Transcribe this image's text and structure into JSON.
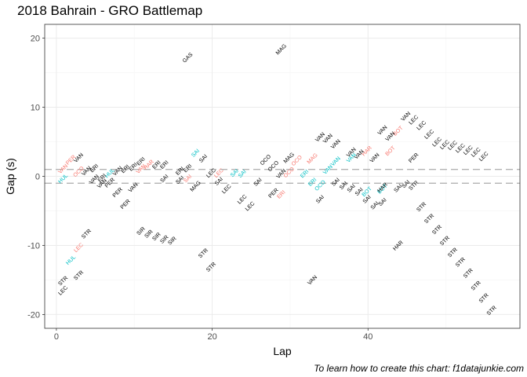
{
  "title": "2018 Bahrain - GRO Battlemap",
  "caption": "To learn how to create this chart: f1datajunkie.com",
  "colors": {
    "ahead": "#F8766D",
    "behind": "#00BFC4",
    "other": "#000000",
    "ref_line": "#b3b3b3",
    "grid_major": "#ebebeb",
    "grid_minor": "#f5f5f5",
    "panel_border": "#333333"
  },
  "chart_data": {
    "type": "scatter",
    "title": "2018 Bahrain - GRO Battlemap",
    "xlabel": "Lap",
    "ylabel": "Gap (s)",
    "xlim": [
      -1.5,
      59.5
    ],
    "ylim": [
      -22,
      22
    ],
    "x_ticks": [
      0,
      20,
      40
    ],
    "y_ticks": [
      -20,
      -10,
      0,
      10,
      20
    ],
    "reference_lines": [
      1,
      -1
    ],
    "grid": true,
    "legend": "none",
    "series": [
      {
        "role": "ahead",
        "points": [
          {
            "lap": 1,
            "gap": 0.9,
            "label": "VAN"
          },
          {
            "lap": 2,
            "gap": 2.2,
            "label": "PER"
          },
          {
            "lap": 3,
            "gap": 0.5,
            "label": "OCO"
          },
          {
            "lap": 11,
            "gap": 0.9,
            "label": "VAN"
          },
          {
            "lap": 12,
            "gap": 1.5,
            "label": "HAR"
          },
          {
            "lap": 17,
            "gap": -0.5,
            "label": "SAI"
          },
          {
            "lap": 21,
            "gap": 0.3,
            "label": "LEC"
          },
          {
            "lap": 29,
            "gap": -2.8,
            "label": "ERI"
          },
          {
            "lap": 30,
            "gap": 0.4,
            "label": "OCO"
          },
          {
            "lap": 31,
            "gap": 2.1,
            "label": "OCO"
          },
          {
            "lap": 33,
            "gap": 2.4,
            "label": "MAG"
          },
          {
            "lap": 40,
            "gap": 3.5,
            "label": "HAR"
          },
          {
            "lap": 43,
            "gap": 3.5,
            "label": "BOT"
          },
          {
            "lap": 44,
            "gap": 6.4,
            "label": "BOT"
          },
          {
            "lap": 3,
            "gap": -10.5,
            "label": "LEC"
          }
        ]
      },
      {
        "role": "behind",
        "points": [
          {
            "lap": 1,
            "gap": -0.5,
            "label": "HUL"
          },
          {
            "lap": 7,
            "gap": 0.3,
            "label": "HUL"
          },
          {
            "lap": 18,
            "gap": 3.2,
            "label": "SAI"
          },
          {
            "lap": 23,
            "gap": 0.3,
            "label": "SAI"
          },
          {
            "lap": 24,
            "gap": 0.2,
            "label": "SAI"
          },
          {
            "lap": 32,
            "gap": 0.2,
            "label": "ERI"
          },
          {
            "lap": 33,
            "gap": -1.0,
            "label": "ERI"
          },
          {
            "lap": 34,
            "gap": -1.5,
            "label": "OCO"
          },
          {
            "lap": 35,
            "gap": 0.8,
            "label": "VAN"
          },
          {
            "lap": 36,
            "gap": 2.0,
            "label": "VAN"
          },
          {
            "lap": 38,
            "gap": 2.5,
            "label": "VAN"
          },
          {
            "lap": 40,
            "gap": -2.4,
            "label": "BOT"
          },
          {
            "lap": 42,
            "gap": -2.0,
            "label": "BOT"
          },
          {
            "lap": 2,
            "gap": -12.3,
            "label": "HUL"
          }
        ]
      },
      {
        "role": "other",
        "points": [
          {
            "lap": 17,
            "gap": 17,
            "label": "GAS"
          },
          {
            "lap": 29,
            "gap": 18.2,
            "label": "MAG"
          },
          {
            "lap": 3,
            "gap": 2.5,
            "label": "VAN"
          },
          {
            "lap": 4,
            "gap": 0.6,
            "label": "VAN"
          },
          {
            "lap": 5,
            "gap": 1.0,
            "label": "ERI"
          },
          {
            "lap": 5,
            "gap": -0.6,
            "label": "VAN"
          },
          {
            "lap": 6,
            "gap": -0.4,
            "label": "ERI"
          },
          {
            "lap": 6,
            "gap": -1.2,
            "label": "VAN"
          },
          {
            "lap": 7,
            "gap": -1.1,
            "label": "PER"
          },
          {
            "lap": 8,
            "gap": 0.6,
            "label": "VAN"
          },
          {
            "lap": 9,
            "gap": 0.9,
            "label": "ERI"
          },
          {
            "lap": 8,
            "gap": -2.5,
            "label": "PER"
          },
          {
            "lap": 9,
            "gap": -4.2,
            "label": "PER"
          },
          {
            "lap": 10,
            "gap": 1.2,
            "label": "ERI"
          },
          {
            "lap": 11,
            "gap": 2.0,
            "label": "ERI"
          },
          {
            "lap": 10,
            "gap": -1.8,
            "label": "VAN"
          },
          {
            "lap": 13,
            "gap": 1.5,
            "label": "ERI"
          },
          {
            "lap": 14,
            "gap": 1.5,
            "label": "ERI"
          },
          {
            "lap": 14,
            "gap": -0.5,
            "label": "SAI"
          },
          {
            "lap": 16,
            "gap": 0.6,
            "label": "ERI"
          },
          {
            "lap": 17,
            "gap": 1.0,
            "label": "ERI"
          },
          {
            "lap": 16,
            "gap": -0.7,
            "label": "SAI"
          },
          {
            "lap": 18,
            "gap": -1.6,
            "label": "MAG"
          },
          {
            "lap": 19,
            "gap": 2.4,
            "label": "SAI"
          },
          {
            "lap": 20,
            "gap": 0.3,
            "label": "LEC"
          },
          {
            "lap": 21,
            "gap": -0.9,
            "label": "SAI"
          },
          {
            "lap": 22,
            "gap": -2.0,
            "label": "LEC"
          },
          {
            "lap": 24,
            "gap": -3.5,
            "label": "LEC"
          },
          {
            "lap": 25,
            "gap": -4.5,
            "label": "LEC"
          },
          {
            "lap": 26,
            "gap": -1.0,
            "label": "SAI"
          },
          {
            "lap": 27,
            "gap": 2.2,
            "label": "OCO"
          },
          {
            "lap": 28,
            "gap": 1.3,
            "label": "OCO"
          },
          {
            "lap": 29,
            "gap": 0.2,
            "label": "VAN"
          },
          {
            "lap": 28,
            "gap": -2.6,
            "label": "PER"
          },
          {
            "lap": 30,
            "gap": 2.5,
            "label": "MAG"
          },
          {
            "lap": 34,
            "gap": 5.5,
            "label": "VAN"
          },
          {
            "lap": 35,
            "gap": 5.3,
            "label": "VAN"
          },
          {
            "lap": 36,
            "gap": 4.5,
            "label": "VAN"
          },
          {
            "lap": 34,
            "gap": -3.5,
            "label": "SAI"
          },
          {
            "lap": 36,
            "gap": -1.0,
            "label": "SAI"
          },
          {
            "lap": 37,
            "gap": -1.5,
            "label": "SAI"
          },
          {
            "lap": 38,
            "gap": -1.9,
            "label": "SAI"
          },
          {
            "lap": 39,
            "gap": -2.4,
            "label": "SAI"
          },
          {
            "lap": 40,
            "gap": -3.5,
            "label": "SAI"
          },
          {
            "lap": 41,
            "gap": -4.4,
            "label": "SAI"
          },
          {
            "lap": 42,
            "gap": -3.9,
            "label": "SAI"
          },
          {
            "lap": 42,
            "gap": -1.8,
            "label": "HAR"
          },
          {
            "lap": 44,
            "gap": -1.9,
            "label": "SAI"
          },
          {
            "lap": 45,
            "gap": -1.3,
            "label": "SAI"
          },
          {
            "lap": 44,
            "gap": -10.2,
            "label": "HAR"
          },
          {
            "lap": 38,
            "gap": 3.3,
            "label": "VAN"
          },
          {
            "lap": 39,
            "gap": 3.0,
            "label": "VAN"
          },
          {
            "lap": 41,
            "gap": 2.5,
            "label": "VAN"
          },
          {
            "lap": 42,
            "gap": 6.5,
            "label": "VAN"
          },
          {
            "lap": 43,
            "gap": 5.6,
            "label": "VAN"
          },
          {
            "lap": 45,
            "gap": 8.5,
            "label": "VAN"
          },
          {
            "lap": 46,
            "gap": 8.0,
            "label": "LEC"
          },
          {
            "lap": 47,
            "gap": 7.2,
            "label": "LEC"
          },
          {
            "lap": 48,
            "gap": 5.9,
            "label": "LEC"
          },
          {
            "lap": 49,
            "gap": 4.8,
            "label": "LEC"
          },
          {
            "lap": 50,
            "gap": 4.4,
            "label": "LEC"
          },
          {
            "lap": 51,
            "gap": 4.3,
            "label": "LEC"
          },
          {
            "lap": 52,
            "gap": 3.9,
            "label": "LEC"
          },
          {
            "lap": 53,
            "gap": 3.6,
            "label": "LEC"
          },
          {
            "lap": 54,
            "gap": 3.3,
            "label": "LEC"
          },
          {
            "lap": 55,
            "gap": 2.7,
            "label": "LEC"
          },
          {
            "lap": 46,
            "gap": 2.5,
            "label": "PER"
          },
          {
            "lap": 46,
            "gap": -1.5,
            "label": "STR"
          },
          {
            "lap": 47,
            "gap": -4.6,
            "label": "STR"
          },
          {
            "lap": 48,
            "gap": -6.3,
            "label": "STR"
          },
          {
            "lap": 49,
            "gap": -7.9,
            "label": "STR"
          },
          {
            "lap": 50,
            "gap": -9.5,
            "label": "STR"
          },
          {
            "lap": 51,
            "gap": -11.2,
            "label": "STR"
          },
          {
            "lap": 52,
            "gap": -12.6,
            "label": "STR"
          },
          {
            "lap": 53,
            "gap": -14.2,
            "label": "STR"
          },
          {
            "lap": 54,
            "gap": -16.0,
            "label": "STR"
          },
          {
            "lap": 55,
            "gap": -17.8,
            "label": "STR"
          },
          {
            "lap": 56,
            "gap": -19.6,
            "label": "STR"
          },
          {
            "lap": 4,
            "gap": -8.5,
            "label": "STR"
          },
          {
            "lap": 11,
            "gap": -8.1,
            "label": "SIR"
          },
          {
            "lap": 12,
            "gap": -8.5,
            "label": "SIR"
          },
          {
            "lap": 13,
            "gap": -8.9,
            "label": "SIR"
          },
          {
            "lap": 14,
            "gap": -9.3,
            "label": "SIR"
          },
          {
            "lap": 15,
            "gap": -9.5,
            "label": "SIR"
          },
          {
            "lap": 19,
            "gap": -11.3,
            "label": "STR"
          },
          {
            "lap": 20,
            "gap": -13.3,
            "label": "STR"
          },
          {
            "lap": 1,
            "gap": -15.3,
            "label": "STR"
          },
          {
            "lap": 1,
            "gap": -16.7,
            "label": "LEC"
          },
          {
            "lap": 3,
            "gap": -14.5,
            "label": "STR"
          },
          {
            "lap": 33,
            "gap": -15.2,
            "label": "VAN"
          }
        ]
      }
    ]
  }
}
